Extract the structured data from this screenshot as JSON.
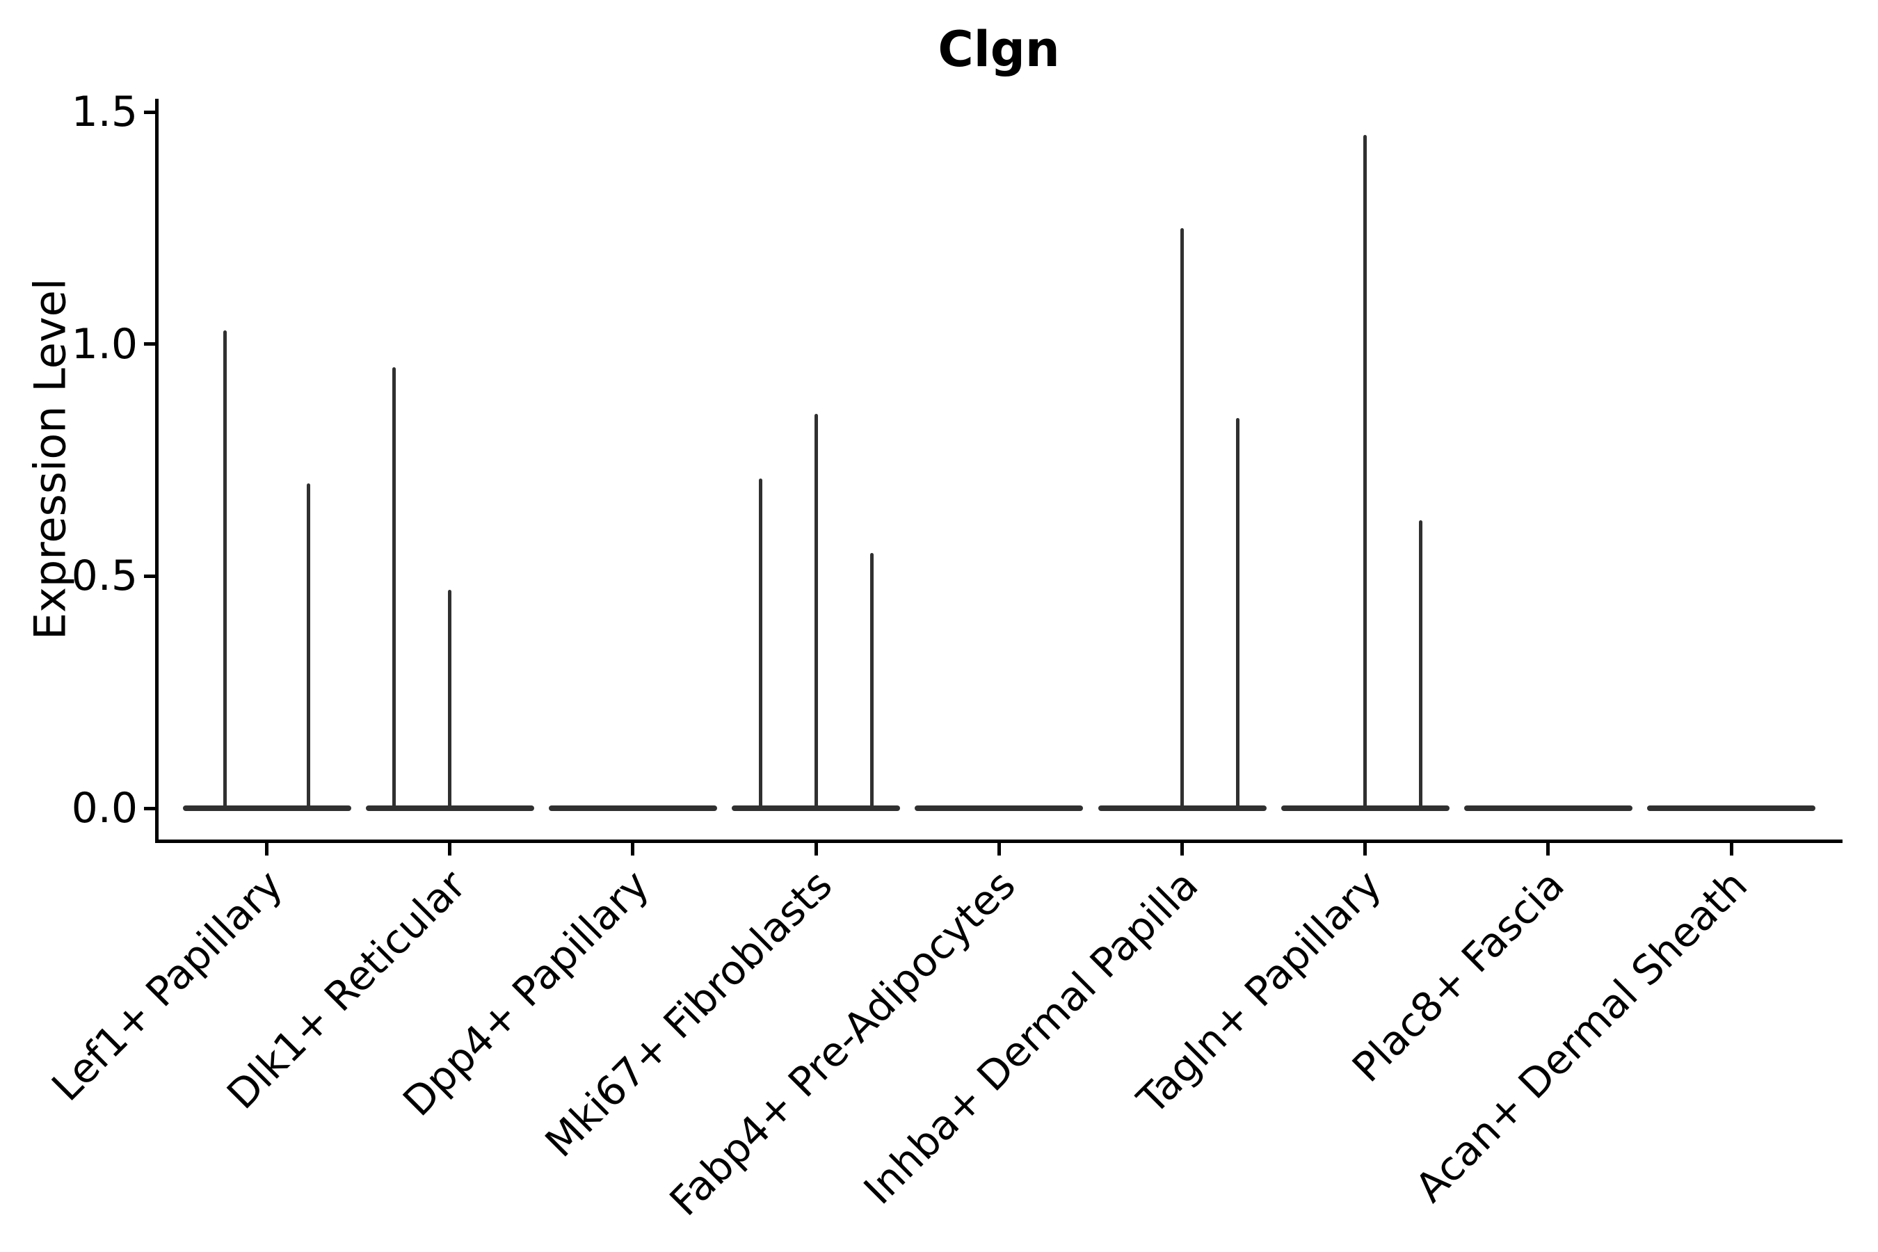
{
  "chart_data": {
    "type": "violin",
    "title": "Clgn",
    "ylabel": "Expression Level",
    "xlabel": "",
    "grid": false,
    "legend": null,
    "background": "#ffffff",
    "colors": {
      "violin": "#303030",
      "axis": "#000000",
      "text": "#000000"
    },
    "ylim": [
      -0.07,
      1.53
    ],
    "yticks": [
      "0.0",
      "0.5",
      "1.0",
      "1.5"
    ],
    "ytick_values": [
      0.0,
      0.5,
      1.0,
      1.5
    ],
    "categories": [
      {
        "label": "Lef1+ Papillary",
        "spikes": [
          {
            "offset": -60,
            "value": 1.03
          },
          {
            "offset": 60,
            "value": 0.7
          }
        ]
      },
      {
        "label": "Dlk1+ Reticular",
        "spikes": [
          {
            "offset": -80,
            "value": 0.95
          },
          {
            "offset": 0,
            "value": 0.47
          }
        ]
      },
      {
        "label": "Dpp4+ Papillary",
        "spikes": []
      },
      {
        "label": "Mki67+ Fibroblasts",
        "spikes": [
          {
            "offset": -80,
            "value": 0.71
          },
          {
            "offset": 0,
            "value": 0.85
          },
          {
            "offset": 80,
            "value": 0.55
          }
        ]
      },
      {
        "label": "Fabp4+ Pre-Adipocytes",
        "spikes": []
      },
      {
        "label": "Inhba+ Dermal Papilla",
        "spikes": [
          {
            "offset": 0,
            "value": 1.25
          },
          {
            "offset": 80,
            "value": 0.84
          }
        ]
      },
      {
        "label": "Tagln+ Papillary",
        "spikes": [
          {
            "offset": 0,
            "value": 1.45
          },
          {
            "offset": 80,
            "value": 0.62
          }
        ]
      },
      {
        "label": "Plac8+ Fascia",
        "spikes": []
      },
      {
        "label": "Acan+ Dermal Sheath",
        "spikes": []
      }
    ]
  }
}
